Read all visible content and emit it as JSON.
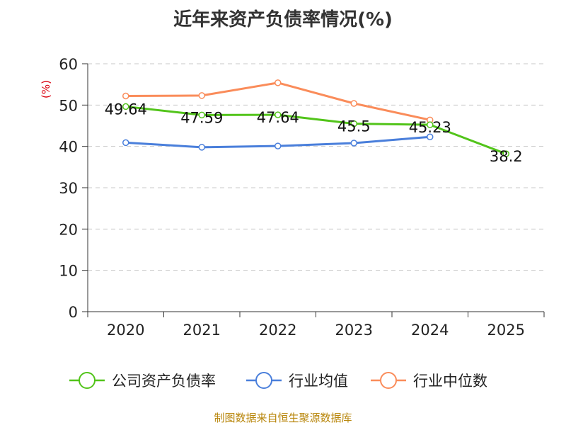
{
  "title": "近年来资产负债率情况(%)",
  "source": "制图数据来自恒生聚源数据库",
  "chart_data": {
    "type": "line",
    "title": "近年来资产负债率情况(%)",
    "ylabel": "(%)",
    "xlabel": "",
    "ylim": [
      0,
      60
    ],
    "yticks": [
      0,
      10,
      20,
      30,
      40,
      50,
      60
    ],
    "categories": [
      "2020",
      "2021",
      "2022",
      "2023",
      "2024",
      "2025"
    ],
    "grid": true,
    "legend_position": "bottom",
    "series": [
      {
        "name": "公司资产负债率",
        "color": "#52c41a",
        "values": [
          49.64,
          47.59,
          47.64,
          45.5,
          45.23,
          38.2
        ],
        "labels": [
          "49.64",
          "47.59",
          "47.64",
          "45.5",
          "45.23",
          "38.2"
        ]
      },
      {
        "name": "行业均值",
        "color": "#4a7fdb",
        "values": [
          40.9,
          39.8,
          40.1,
          40.8,
          42.3,
          null
        ]
      },
      {
        "name": "行业中位数",
        "color": "#fa8c5a",
        "values": [
          52.2,
          52.3,
          55.4,
          50.4,
          46.4,
          null
        ]
      }
    ]
  }
}
